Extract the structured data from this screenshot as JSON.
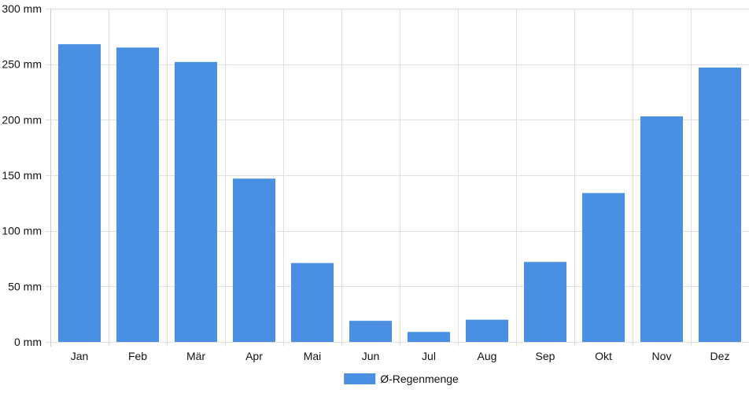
{
  "chart_data": {
    "type": "bar",
    "categories": [
      "Jan",
      "Feb",
      "Mär",
      "Apr",
      "Mai",
      "Jun",
      "Jul",
      "Aug",
      "Sep",
      "Okt",
      "Nov",
      "Dez"
    ],
    "series": [
      {
        "name": "Ø-Regenmenge",
        "values": [
          268,
          265,
          252,
          147,
          71,
          19,
          9,
          20,
          72,
          134,
          203,
          247
        ],
        "color": "#4a90e2"
      }
    ],
    "ylim": [
      0,
      300
    ],
    "yticks": [
      0,
      50,
      100,
      150,
      200,
      250,
      300
    ],
    "ytick_labels": [
      "0 mm",
      "50 mm",
      "100 mm",
      "150 mm",
      "200 mm",
      "250 mm",
      "300 mm"
    ],
    "grid": true,
    "legend": "bottom-center",
    "colors": {
      "grid": "#e0e0e0",
      "axis": "#cccccc",
      "text": "#111111"
    }
  }
}
